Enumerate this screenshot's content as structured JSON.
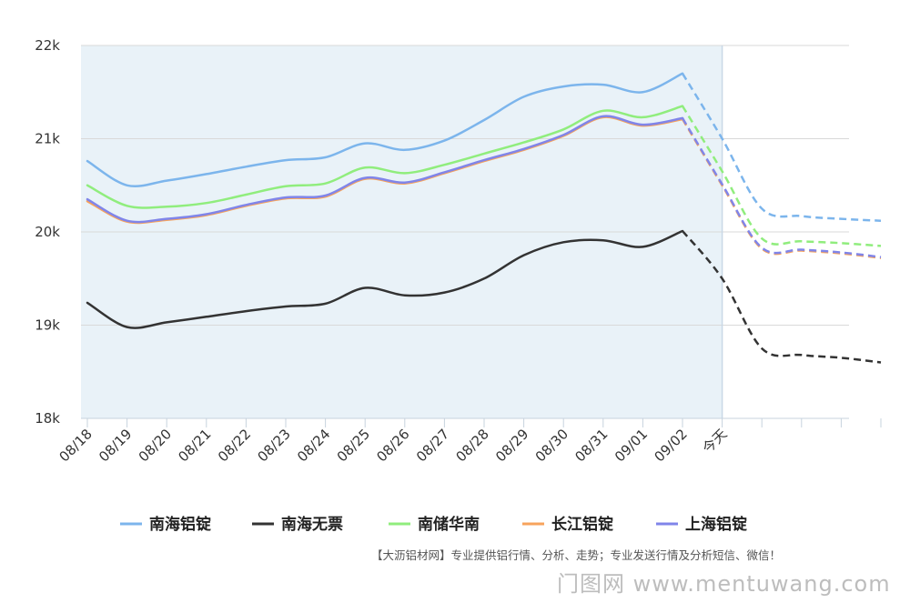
{
  "chart_data": {
    "type": "line",
    "categories": [
      "08/18",
      "08/19",
      "08/20",
      "08/21",
      "08/22",
      "08/23",
      "08/24",
      "08/25",
      "08/26",
      "08/27",
      "08/28",
      "08/29",
      "08/30",
      "08/31",
      "09/01",
      "09/02",
      "今天",
      "",
      "",
      "",
      ""
    ],
    "forecast_start_index": 15,
    "today_index": 16,
    "ylim": [
      18000,
      22000
    ],
    "yticks": [
      {
        "value": 18000,
        "label": "18k"
      },
      {
        "value": 19000,
        "label": "19k"
      },
      {
        "value": 20000,
        "label": "20k"
      },
      {
        "value": 21000,
        "label": "21k"
      },
      {
        "value": 22000,
        "label": "22k"
      }
    ],
    "grid": true,
    "legend_position": "bottom",
    "series": [
      {
        "name": "南海铝锭",
        "color": "#7cb5ec",
        "values": [
          20760,
          20500,
          20550,
          20620,
          20700,
          20770,
          20800,
          20950,
          20880,
          20980,
          21200,
          21450,
          21560,
          21580,
          21500,
          21700,
          21000,
          20250,
          20170,
          20140,
          20120
        ]
      },
      {
        "name": "南海无票",
        "color": "#333333",
        "values": [
          19240,
          18980,
          19030,
          19090,
          19150,
          19200,
          19230,
          19400,
          19320,
          19350,
          19500,
          19750,
          19890,
          19910,
          19840,
          20010,
          19500,
          18750,
          18680,
          18650,
          18600
        ]
      },
      {
        "name": "南储华南",
        "color": "#90ed7d",
        "values": [
          20500,
          20280,
          20270,
          20310,
          20400,
          20490,
          20520,
          20690,
          20630,
          20720,
          20840,
          20960,
          21100,
          21300,
          21230,
          21350,
          20650,
          19930,
          19900,
          19880,
          19850
        ]
      },
      {
        "name": "长江铝锭",
        "color": "#f7a35c",
        "values": [
          20330,
          20110,
          20130,
          20180,
          20280,
          20360,
          20380,
          20570,
          20520,
          20630,
          20760,
          20880,
          21030,
          21230,
          21140,
          21210,
          20500,
          19820,
          19800,
          19770,
          19720
        ]
      },
      {
        "name": "上海铝锭",
        "color": "#8085e9",
        "values": [
          20350,
          20120,
          20140,
          20190,
          20290,
          20370,
          20390,
          20580,
          20530,
          20640,
          20770,
          20890,
          21040,
          21240,
          21150,
          21220,
          20510,
          19830,
          19810,
          19780,
          19730
        ]
      }
    ]
  },
  "footer_note": "【大沥铝材网】专业提供铝行情、分析、走势；专业发送行情及分析短信、微信！",
  "watermark_site": "门图网 www.mentuwang.com"
}
